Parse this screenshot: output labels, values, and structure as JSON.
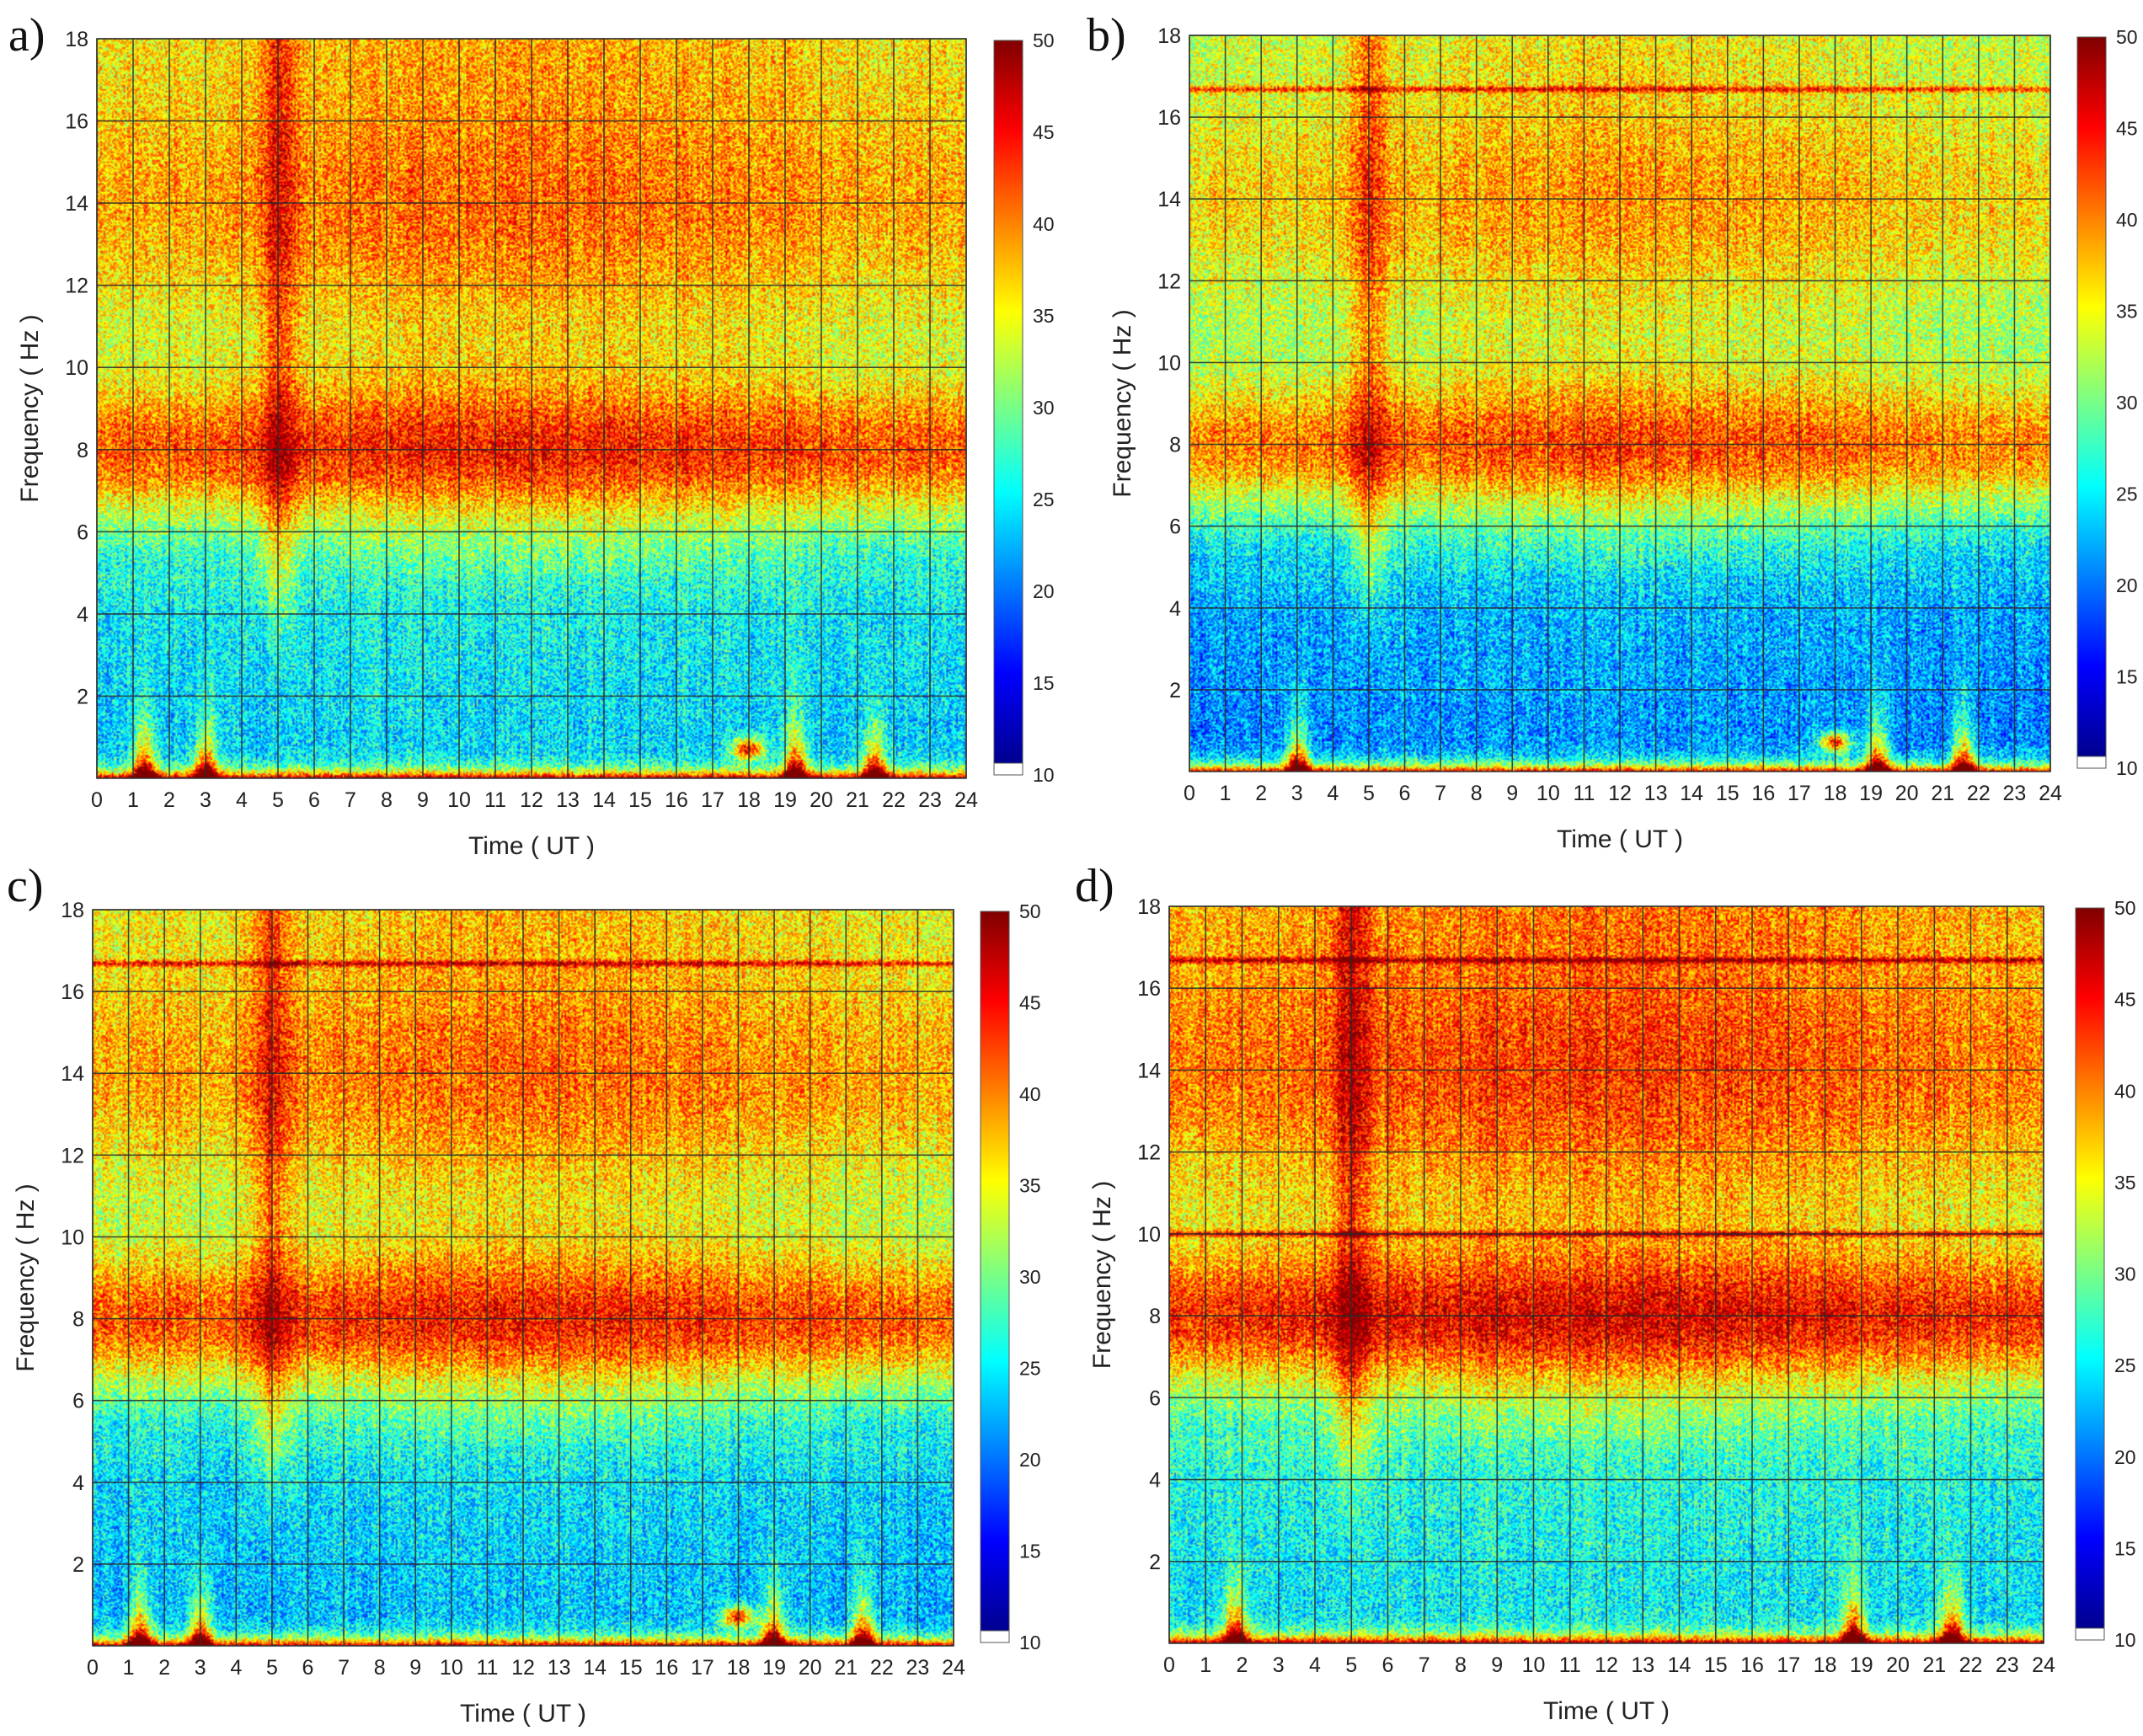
{
  "chart_data": [
    {
      "type": "heatmap",
      "panel_label": "a)",
      "xlabel": "Time ( UT )",
      "ylabel": "Frequency ( Hz )",
      "xlim": [
        0,
        24
      ],
      "ylim": [
        0,
        18
      ],
      "x_ticks": [
        0,
        1,
        2,
        3,
        4,
        5,
        6,
        7,
        8,
        9,
        10,
        11,
        12,
        13,
        14,
        15,
        16,
        17,
        18,
        19,
        20,
        21,
        22,
        23,
        24
      ],
      "y_ticks": [
        2,
        4,
        6,
        8,
        10,
        12,
        14,
        16,
        18
      ],
      "colorbar": {
        "min": 10,
        "max": 50,
        "ticks": [
          10,
          15,
          20,
          25,
          30,
          35,
          40,
          45,
          50
        ]
      },
      "bands": [
        {
          "name": "first Schumann resonance",
          "center_hz": 8,
          "level": 43
        },
        {
          "name": "second Schumann resonance",
          "center_hz": 14,
          "level": 40
        }
      ],
      "baseline_levels": {
        "high_freq": 37,
        "mid_freq": 33,
        "low_freq": 25
      },
      "events": [
        {
          "time_ut": 5,
          "type": "vertical broadband enhancement"
        },
        {
          "time_ut": 1.3,
          "type": "low-frequency burst"
        },
        {
          "time_ut": 3,
          "type": "low-frequency burst"
        },
        {
          "time_ut": 18,
          "type": "low-frequency patch"
        },
        {
          "time_ut": 19.3,
          "type": "low-frequency burst"
        },
        {
          "time_ut": 21.5,
          "type": "low-frequency burst"
        }
      ]
    },
    {
      "type": "heatmap",
      "panel_label": "b)",
      "xlabel": "Time ( UT )",
      "ylabel": "Frequency ( Hz )",
      "xlim": [
        0,
        24
      ],
      "ylim": [
        0,
        18
      ],
      "x_ticks": [
        0,
        1,
        2,
        3,
        4,
        5,
        6,
        7,
        8,
        9,
        10,
        11,
        12,
        13,
        14,
        15,
        16,
        17,
        18,
        19,
        20,
        21,
        22,
        23,
        24
      ],
      "y_ticks": [
        2,
        4,
        6,
        8,
        10,
        12,
        14,
        16,
        18
      ],
      "colorbar": {
        "min": 10,
        "max": 50,
        "ticks": [
          10,
          15,
          20,
          25,
          30,
          35,
          40,
          45,
          50
        ]
      },
      "bands": [
        {
          "name": "first Schumann resonance",
          "center_hz": 8,
          "level": 41
        },
        {
          "name": "second Schumann resonance",
          "center_hz": 14,
          "level": 38
        }
      ],
      "baseline_levels": {
        "high_freq": 34,
        "mid_freq": 31,
        "low_freq": 22
      },
      "lines_hz": [
        16.7
      ],
      "events": [
        {
          "time_ut": 5,
          "type": "vertical broadband enhancement"
        },
        {
          "time_ut": 3,
          "type": "low-frequency burst"
        },
        {
          "time_ut": 18,
          "type": "low-frequency patch"
        },
        {
          "time_ut": 19.2,
          "type": "low-frequency burst"
        },
        {
          "time_ut": 21.6,
          "type": "low-frequency burst"
        }
      ]
    },
    {
      "type": "heatmap",
      "panel_label": "c)",
      "xlabel": "Time ( UT )",
      "ylabel": "Frequency ( Hz )",
      "xlim": [
        0,
        24
      ],
      "ylim": [
        0,
        18
      ],
      "x_ticks": [
        0,
        1,
        2,
        3,
        4,
        5,
        6,
        7,
        8,
        9,
        10,
        11,
        12,
        13,
        14,
        15,
        16,
        17,
        18,
        19,
        20,
        21,
        22,
        23,
        24
      ],
      "y_ticks": [
        2,
        4,
        6,
        8,
        10,
        12,
        14,
        16,
        18
      ],
      "colorbar": {
        "min": 10,
        "max": 50,
        "ticks": [
          10,
          15,
          20,
          25,
          30,
          35,
          40,
          45,
          50
        ]
      },
      "bands": [
        {
          "name": "first Schumann resonance",
          "center_hz": 8,
          "level": 43
        },
        {
          "name": "second Schumann resonance",
          "center_hz": 14,
          "level": 40
        }
      ],
      "baseline_levels": {
        "high_freq": 36,
        "mid_freq": 32,
        "low_freq": 24
      },
      "lines_hz": [
        16.7
      ],
      "events": [
        {
          "time_ut": 5,
          "type": "vertical broadband enhancement"
        },
        {
          "time_ut": 1.3,
          "type": "low-frequency burst"
        },
        {
          "time_ut": 3,
          "type": "low-frequency burst"
        },
        {
          "time_ut": 18,
          "type": "low-frequency patch"
        },
        {
          "time_ut": 19,
          "type": "low-frequency burst"
        },
        {
          "time_ut": 21.5,
          "type": "low-frequency burst"
        }
      ]
    },
    {
      "type": "heatmap",
      "panel_label": "d)",
      "xlabel": "Time ( UT )",
      "ylabel": "Frequency ( Hz )",
      "xlim": [
        0,
        24
      ],
      "ylim": [
        0,
        18
      ],
      "x_ticks": [
        0,
        1,
        2,
        3,
        4,
        5,
        6,
        7,
        8,
        9,
        10,
        11,
        12,
        13,
        14,
        15,
        16,
        17,
        18,
        19,
        20,
        21,
        22,
        23,
        24
      ],
      "y_ticks": [
        2,
        4,
        6,
        8,
        10,
        12,
        14,
        16,
        18
      ],
      "colorbar": {
        "min": 10,
        "max": 50,
        "ticks": [
          10,
          15,
          20,
          25,
          30,
          35,
          40,
          45,
          50
        ]
      },
      "bands": [
        {
          "name": "first Schumann resonance",
          "center_hz": 8,
          "level": 45
        },
        {
          "name": "second Schumann resonance",
          "center_hz": 14,
          "level": 42
        }
      ],
      "baseline_levels": {
        "high_freq": 39,
        "mid_freq": 34,
        "low_freq": 26
      },
      "lines_hz": [
        10,
        16.7
      ],
      "events": [
        {
          "time_ut": 5,
          "type": "vertical broadband enhancement"
        },
        {
          "time_ut": 1.8,
          "type": "low-frequency burst"
        },
        {
          "time_ut": 18.8,
          "type": "low-frequency burst"
        },
        {
          "time_ut": 21.5,
          "type": "low-frequency burst"
        }
      ]
    }
  ]
}
